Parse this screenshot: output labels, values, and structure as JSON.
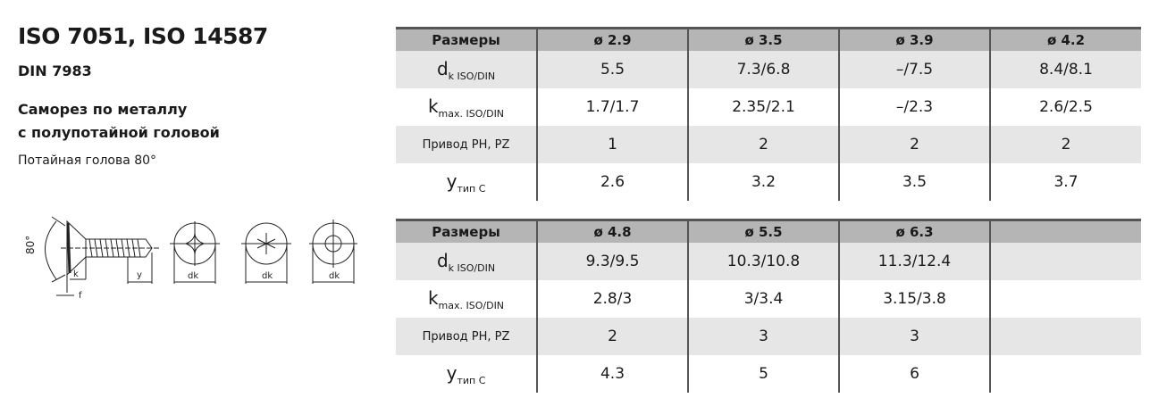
{
  "title": "ISO 7051, ISO 14587",
  "standard": "DIN 7983",
  "name_line1": "Саморез по металлу",
  "name_line2": "с полупотайной головой",
  "note": "Потайная голова 80°",
  "drawing": {
    "angle": "80°",
    "labels": [
      "k",
      "f",
      "y",
      "dk",
      "dk",
      "dk"
    ]
  },
  "row_labels": {
    "header": "Размеры",
    "dk_main": "d",
    "dk_sub": "k ISO/DIN",
    "k_main": "k",
    "k_sub": "max. ISO/DIN",
    "drive": "Привод PH, PZ",
    "y_main": "y",
    "y_sub": "тип C"
  },
  "table1": {
    "sizes": [
      "ø 2.9",
      "ø 3.5",
      "ø 3.9",
      "ø 4.2"
    ],
    "dk": [
      "5.5",
      "7.3/6.8",
      "–/7.5",
      "8.4/8.1"
    ],
    "k": [
      "1.7/1.7",
      "2.35/2.1",
      "–/2.3",
      "2.6/2.5"
    ],
    "drive": [
      "1",
      "2",
      "2",
      "2"
    ],
    "y": [
      "2.6",
      "3.2",
      "3.5",
      "3.7"
    ]
  },
  "table2": {
    "sizes": [
      "ø 4.8",
      "ø 5.5",
      "ø 6.3",
      ""
    ],
    "dk": [
      "9.3/9.5",
      "10.3/10.8",
      "11.3/12.4",
      ""
    ],
    "k": [
      "2.8/3",
      "3/3.4",
      "3.15/3.8",
      ""
    ],
    "drive": [
      "2",
      "3",
      "3",
      ""
    ],
    "y": [
      "4.3",
      "5",
      "6",
      ""
    ]
  }
}
